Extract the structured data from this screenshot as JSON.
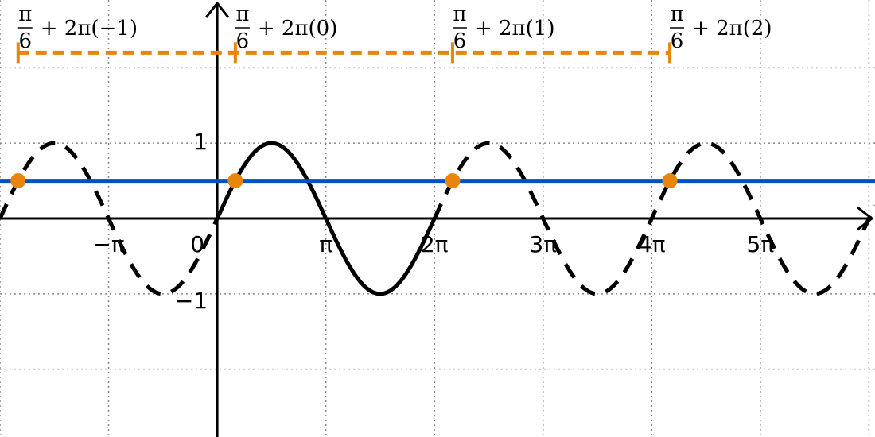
{
  "chart_data": {
    "type": "line",
    "xlim": [
      -6.2832,
      19.0241
    ],
    "ylim": [
      -2.9,
      2.9
    ],
    "grid": true,
    "x_tick_labels": [
      {
        "x": -3.14159,
        "label": "−π"
      },
      {
        "x": 0,
        "label": "0"
      },
      {
        "x": 3.14159,
        "label": "π"
      },
      {
        "x": 6.28319,
        "label": "2π"
      },
      {
        "x": 9.42478,
        "label": "3π"
      },
      {
        "x": 12.56637,
        "label": "4π"
      },
      {
        "x": 15.70796,
        "label": "5π"
      }
    ],
    "y_tick_labels": [
      {
        "y": 1,
        "label": "1"
      },
      {
        "y": -1,
        "label": "−1"
      }
    ],
    "series": [
      {
        "function": "sin",
        "domain": [
          0,
          6.28319
        ],
        "style": "solid",
        "color": "#000000"
      },
      {
        "function": "sin",
        "domain": [
          -6.2832,
          0
        ],
        "style": "dashed",
        "color": "#000000"
      },
      {
        "function": "sin",
        "domain": [
          6.28319,
          19.0241
        ],
        "style": "dashed",
        "color": "#000000"
      },
      {
        "function": "constant",
        "value": 0.5,
        "style": "solid",
        "color": "#0050c8"
      }
    ],
    "intersection_points": [
      {
        "x": -5.75959,
        "y": 0.5
      },
      {
        "x": 0.5236,
        "y": 0.5
      },
      {
        "x": 6.80678,
        "y": 0.5
      },
      {
        "x": 13.08997,
        "y": 0.5
      }
    ],
    "period_bar": {
      "y": 2.2,
      "x_start": -5.75959,
      "x_end": 13.08997,
      "markers": [
        0.5236,
        6.80678
      ],
      "color": "#e8850a"
    },
    "annotations": [
      {
        "x": -5.75959,
        "num": "π",
        "den": "6",
        "suffix": "+ 2π(−1)"
      },
      {
        "x": 0.5236,
        "num": "π",
        "den": "6",
        "suffix": "+ 2π(0)"
      },
      {
        "x": 6.80678,
        "num": "π",
        "den": "6",
        "suffix": "+ 2π(1)"
      },
      {
        "x": 13.08997,
        "num": "π",
        "den": "6",
        "suffix": "+ 2π(2)"
      }
    ]
  }
}
